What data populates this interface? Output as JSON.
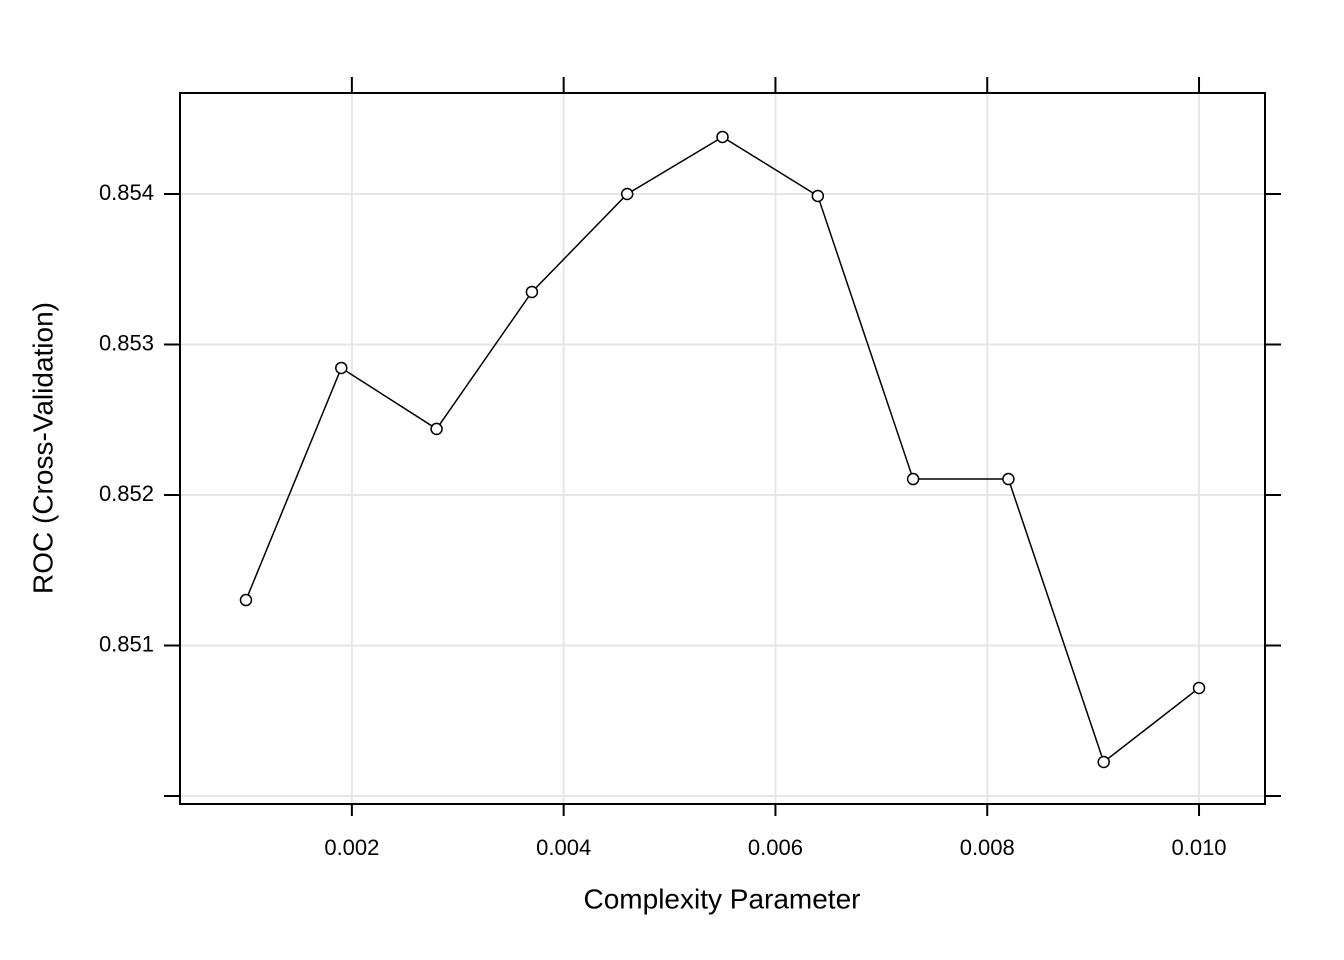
{
  "chart_data": {
    "type": "line",
    "xlabel": "Complexity Parameter",
    "ylabel": "ROC (Cross-Validation)",
    "x": [
      0.001,
      0.0019,
      0.0028,
      0.0037,
      0.0046,
      0.0055,
      0.0064,
      0.0073,
      0.0082,
      0.0091,
      0.01
    ],
    "series": [
      {
        "color": "#000000",
        "values": [
          0.851302,
          0.852844,
          0.852439,
          0.853349,
          0.854,
          0.854379,
          0.853987,
          0.852106,
          0.852106,
          0.850226,
          0.850718
        ]
      }
    ],
    "xlim": [
      0.000377,
      0.010623
    ],
    "ylim": [
      0.849947,
      0.854671
    ],
    "xticks": [
      0.002,
      0.004,
      0.006,
      0.008,
      {
        "value": 0.01,
        "label": "0.010"
      }
    ],
    "yticks": [
      {
        "value": 0.85,
        "label": null
      },
      0.851,
      0.852,
      0.853,
      0.854
    ],
    "grid": true,
    "markers": "open-circle"
  }
}
